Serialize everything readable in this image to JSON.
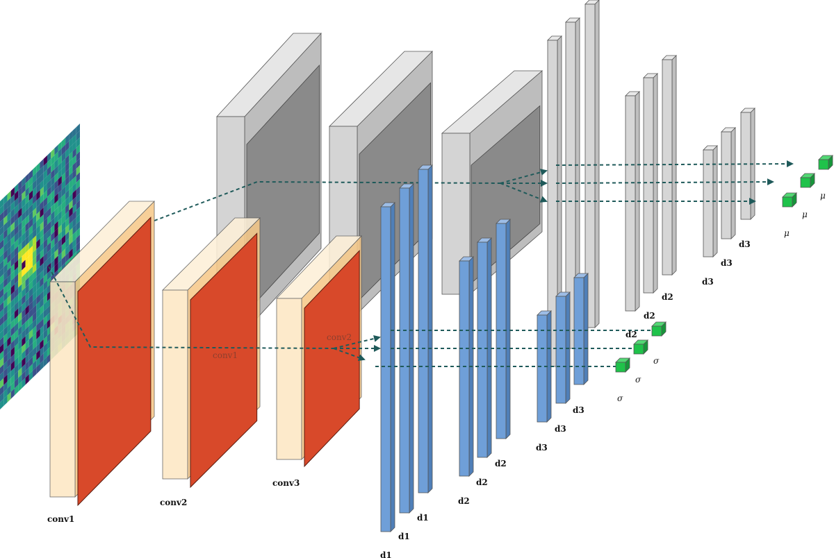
{
  "labels": {
    "conv1": "conv1",
    "conv2": "conv2",
    "conv3": "conv3",
    "d1": "d1",
    "d2": "d2",
    "d3": "d3",
    "mu": "μ",
    "sigma": "σ"
  },
  "colors": {
    "conv_face": "#fde8c4",
    "conv_side": "#f6c98a",
    "relu": "#d8492a",
    "dense_blue": "#6f9fd8",
    "dense_gray": "#d3d3d3",
    "output_green": "#1fc24a",
    "connection": "#1f5a5a",
    "input_bg": "#2a788e"
  }
}
